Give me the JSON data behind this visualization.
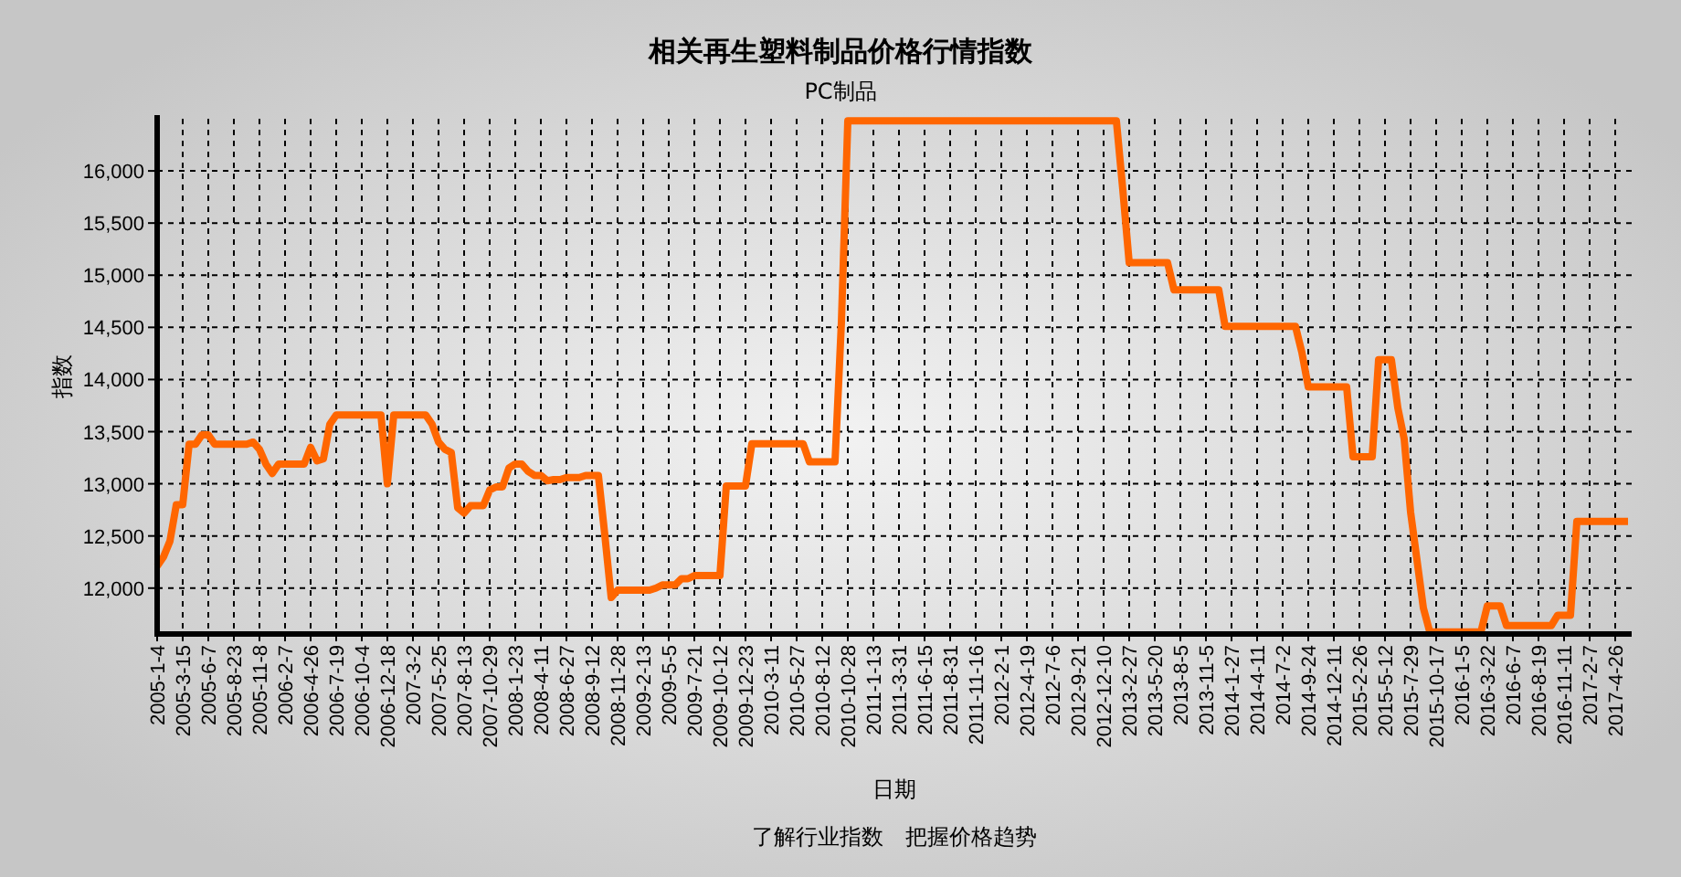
{
  "chart_data": {
    "type": "line",
    "title": "相关再生塑料制品价格行情指数",
    "subtitle": "PC制品",
    "xlabel": "日期",
    "ylabel": "指数",
    "annotations": [
      "了解行业指数　把握价格趋势"
    ],
    "categories": [
      "2005-1-4",
      null,
      null,
      null,
      "2005-3-15",
      null,
      null,
      null,
      "2005-6-7",
      null,
      null,
      null,
      "2005-8-23",
      null,
      null,
      null,
      "2005-11-8",
      null,
      null,
      null,
      "2006-2-7",
      null,
      null,
      null,
      "2006-4-26",
      null,
      null,
      null,
      "2006-7-19",
      null,
      null,
      null,
      "2006-10-4",
      null,
      null,
      null,
      "2006-12-18",
      null,
      null,
      null,
      "2007-3-2",
      null,
      null,
      null,
      "2007-5-25",
      null,
      null,
      null,
      "2007-8-13",
      null,
      null,
      null,
      "2007-10-29",
      null,
      null,
      null,
      "2008-1-23",
      null,
      null,
      null,
      "2008-4-11",
      null,
      null,
      null,
      "2008-6-27",
      null,
      null,
      null,
      "2008-9-12",
      null,
      null,
      null,
      "2008-11-28",
      null,
      null,
      null,
      "2009-2-13",
      null,
      null,
      null,
      "2009-5-5",
      null,
      null,
      null,
      "2009-7-21",
      null,
      null,
      null,
      "2009-10-12",
      null,
      null,
      null,
      "2009-12-23",
      null,
      null,
      null,
      "2010-3-11",
      null,
      null,
      null,
      "2010-5-27",
      null,
      null,
      null,
      "2010-8-12",
      null,
      null,
      null,
      "2010-10-28",
      null,
      null,
      null,
      "2011-1-13",
      null,
      null,
      null,
      "2011-3-31",
      null,
      null,
      null,
      "2011-6-15",
      null,
      null,
      null,
      "2011-8-31",
      null,
      null,
      null,
      "2011-11-16",
      null,
      null,
      null,
      "2012-2-1",
      null,
      null,
      null,
      "2012-4-19",
      null,
      null,
      null,
      "2012-7-6",
      null,
      null,
      null,
      "2012-9-21",
      null,
      null,
      null,
      "2012-12-10",
      null,
      null,
      null,
      "2013-2-27",
      null,
      null,
      null,
      "2013-5-20",
      null,
      null,
      null,
      "2013-8-5",
      null,
      null,
      null,
      "2013-11-5",
      null,
      null,
      null,
      "2014-1-27",
      null,
      null,
      null,
      "2014-4-11",
      null,
      null,
      null,
      "2014-7-2",
      null,
      null,
      null,
      "2014-9-24",
      null,
      null,
      null,
      "2014-12-11",
      null,
      null,
      null,
      "2015-2-26",
      null,
      null,
      null,
      "2015-5-12",
      null,
      null,
      null,
      "2015-7-29",
      null,
      null,
      null,
      "2015-10-17",
      null,
      null,
      null,
      "2016-1-5",
      null,
      null,
      null,
      "2016-3-22",
      null,
      null,
      null,
      "2016-6-7",
      null,
      null,
      null,
      "2016-8-19",
      null,
      null,
      null,
      "2016-11-11",
      null,
      null,
      null,
      "2017-2-7",
      null,
      null,
      null,
      "2017-4-26",
      null,
      null
    ],
    "series": [
      {
        "color": "#ff6600",
        "values": [
          12210,
          12300,
          12450,
          12800,
          12800,
          13380,
          13380,
          13470,
          13470,
          13380,
          13380,
          13380,
          13380,
          13380,
          13380,
          13400,
          13330,
          13190,
          13100,
          13190,
          13190,
          13190,
          13190,
          13190,
          13350,
          13220,
          13240,
          13570,
          13660,
          13660,
          13660,
          13660,
          13660,
          13660,
          13660,
          13660,
          13000,
          13660,
          13660,
          13660,
          13660,
          13660,
          13660,
          13570,
          13400,
          13330,
          13300,
          12770,
          12720,
          12790,
          12790,
          12790,
          12940,
          12970,
          12970,
          13150,
          13190,
          13190,
          13120,
          13080,
          13080,
          13030,
          13040,
          13040,
          13060,
          13060,
          13060,
          13080,
          13080,
          13080,
          12510,
          11910,
          11980,
          11980,
          11980,
          11980,
          11980,
          11980,
          12000,
          12030,
          12030,
          12030,
          12090,
          12090,
          12120,
          12120,
          12120,
          12120,
          12120,
          12980,
          12980,
          12980,
          12980,
          13385,
          13385,
          13385,
          13385,
          13385,
          13385,
          13385,
          13385,
          13385,
          13210,
          13210,
          13210,
          13210,
          13210,
          14550,
          16480,
          16480,
          16480,
          16480,
          16480,
          16480,
          16480,
          16480,
          16480,
          16480,
          16480,
          16480,
          16480,
          16480,
          16480,
          16480,
          16480,
          16480,
          16480,
          16480,
          16480,
          16480,
          16480,
          16480,
          16480,
          16480,
          16480,
          16480,
          16480,
          16480,
          16480,
          16480,
          16480,
          16480,
          16480,
          16480,
          16480,
          16480,
          16480,
          16480,
          16480,
          16480,
          16480,
          15820,
          15120,
          15120,
          15120,
          15120,
          15120,
          15120,
          15120,
          14860,
          14860,
          14860,
          14860,
          14860,
          14860,
          14860,
          14860,
          14510,
          14510,
          14510,
          14510,
          14510,
          14510,
          14510,
          14510,
          14510,
          14510,
          14510,
          14510,
          14260,
          13930,
          13930,
          13930,
          13930,
          13930,
          13930,
          13930,
          13260,
          13260,
          13260,
          13260,
          14190,
          14190,
          14190,
          13730,
          13430,
          12730,
          12270,
          11810,
          11580,
          11580,
          11580,
          11580,
          11580,
          11580,
          11580,
          11580,
          11580,
          11830,
          11830,
          11830,
          11640,
          11640,
          11640,
          11640,
          11640,
          11640,
          11640,
          11640,
          11740,
          11740,
          11740,
          12640,
          12640,
          12640,
          12640,
          12640,
          12640,
          12640,
          12640,
          12640
        ]
      }
    ],
    "ylim": [
      11560,
      16500
    ],
    "yticks": [
      {
        "value": 12000,
        "label": "12,000"
      },
      {
        "value": 12500,
        "label": "12,500"
      },
      {
        "value": 13000,
        "label": "13,000"
      },
      {
        "value": 13500,
        "label": "13,500"
      },
      {
        "value": 14000,
        "label": "14,000"
      },
      {
        "value": 14500,
        "label": "14,500"
      },
      {
        "value": 15000,
        "label": "15,000"
      },
      {
        "value": 15500,
        "label": "15,500"
      },
      {
        "value": 16000,
        "label": "16,000"
      }
    ],
    "grid": true
  }
}
